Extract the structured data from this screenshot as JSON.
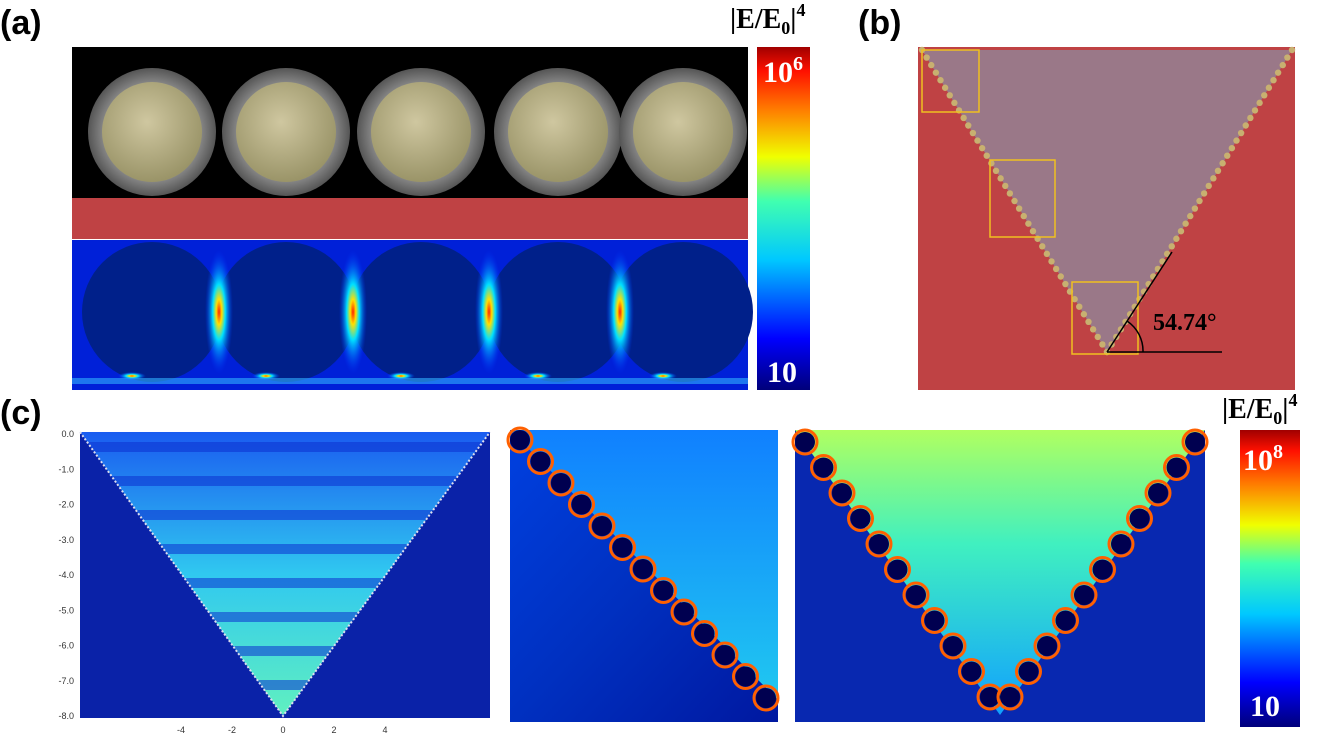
{
  "panels": {
    "a": {
      "label": "(a)"
    },
    "b": {
      "label": "(b)",
      "angle": "54.74°"
    },
    "c": {
      "label": "(c)",
      "yticks": [
        "0.0",
        "-1.0",
        "-2.0",
        "-3.0",
        "-4.0",
        "-5.0",
        "-6.0",
        "-7.0",
        "-8.0"
      ],
      "xticks": [
        "-4",
        "-2",
        "0",
        "2",
        "4"
      ]
    }
  },
  "colorbars": [
    {
      "title": {
        "base": "|E/E",
        "sub": "0",
        "close": "|",
        "sup": "4"
      },
      "max": {
        "base": "10",
        "sup": "6"
      },
      "min": "10"
    },
    {
      "title": {
        "base": "|E/E",
        "sub": "0",
        "close": "|",
        "sup": "4"
      },
      "max": {
        "base": "10",
        "sup": "8"
      },
      "min": "10"
    }
  ]
}
